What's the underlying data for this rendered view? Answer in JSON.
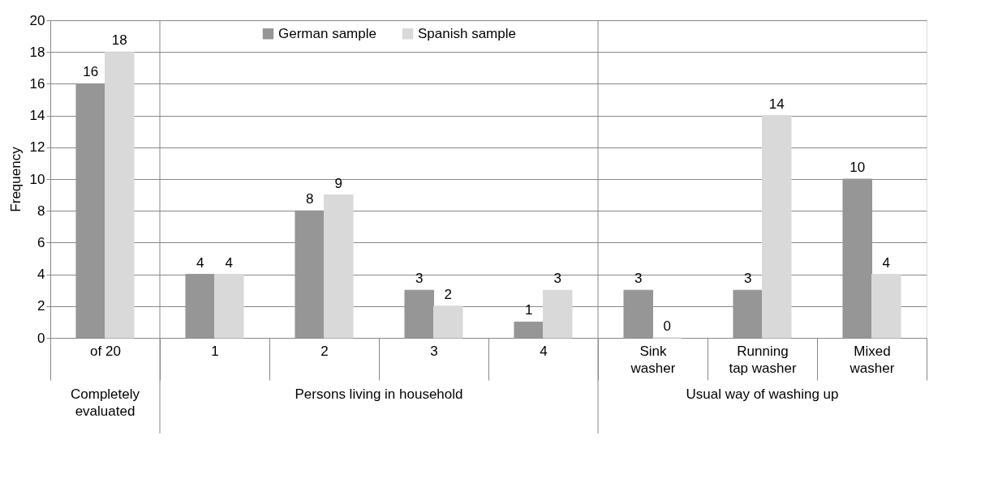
{
  "chart_data": {
    "type": "bar",
    "categories": [
      "of 20",
      "1",
      "2",
      "3",
      "4",
      "Sink washer",
      "Running tap washer",
      "Mixed washer"
    ],
    "series": [
      {
        "name": "German sample",
        "color": "#969696",
        "values": [
          16,
          4,
          8,
          3,
          1,
          3,
          3,
          10
        ]
      },
      {
        "name": "Spanish sample",
        "color": "#d9d9d9",
        "values": [
          18,
          4,
          9,
          2,
          3,
          0,
          14,
          4
        ]
      }
    ],
    "ylabel": "Frequency",
    "ylim": [
      0,
      20
    ],
    "yticks": [
      0,
      2,
      4,
      6,
      8,
      10,
      12,
      14,
      16,
      18,
      20
    ],
    "annotations": [
      "Completely evaluated",
      "Persons living in household",
      "Usual way of washing up"
    ],
    "grid": "y",
    "legend": "top",
    "data_labels": true
  }
}
